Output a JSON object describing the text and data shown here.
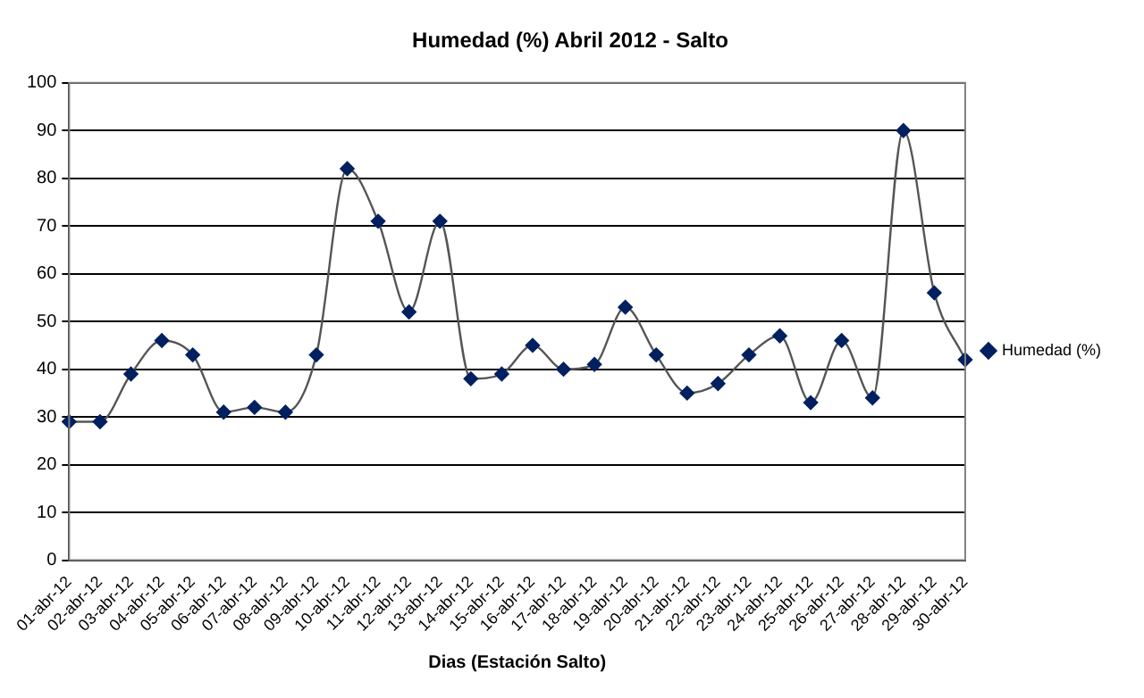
{
  "chart_data": {
    "type": "line",
    "title": "Humedad (%) Abril 2012 - Salto",
    "xlabel": "Dias (Estación Salto)",
    "categories": [
      "01-abr-12",
      "02-abr-12",
      "03-abr-12",
      "04-abr-12",
      "05-abr-12",
      "06-abr-12",
      "07-abr-12",
      "08-abr-12",
      "09-abr-12",
      "10-abr-12",
      "11-abr-12",
      "12-abr-12",
      "13-abr-12",
      "14-abr-12",
      "15-abr-12",
      "16-abr-12",
      "17-abr-12",
      "18-abr-12",
      "19-abr-12",
      "20-abr-12",
      "21-abr-12",
      "22-abr-12",
      "23-abr-12",
      "24-abr-12",
      "25-abr-12",
      "26-abr-12",
      "27-abr-12",
      "28-abr-12",
      "29-abr-12",
      "30-abr-12"
    ],
    "series": [
      {
        "name": "Humedad (%)",
        "color": "#002060",
        "values": [
          29,
          29,
          39,
          46,
          43,
          31,
          32,
          31,
          43,
          82,
          71,
          52,
          71,
          38,
          39,
          45,
          40,
          41,
          53,
          43,
          35,
          37,
          43,
          47,
          33,
          46,
          34,
          90,
          56,
          42
        ]
      }
    ],
    "ylim": [
      0,
      100
    ],
    "yticks": [
      0,
      10,
      20,
      30,
      40,
      50,
      60,
      70,
      80,
      90,
      100
    ],
    "grid": "y",
    "legend": "right",
    "marker": "diamond",
    "line_style": "solid"
  }
}
